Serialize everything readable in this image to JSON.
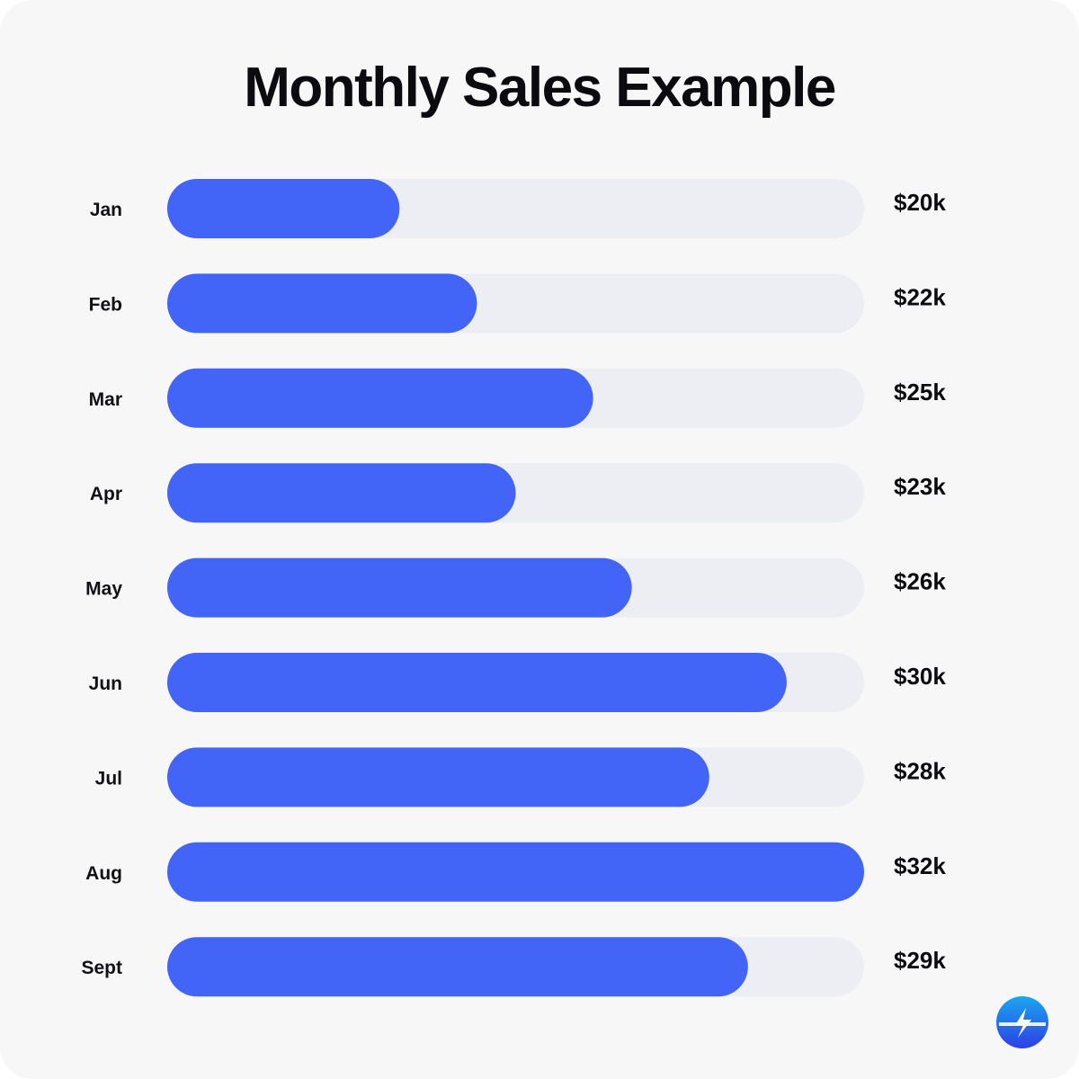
{
  "title": "Monthly Sales Example",
  "chart_data": {
    "type": "bar",
    "orientation": "horizontal",
    "title": "Monthly Sales Example",
    "categories": [
      "Jan",
      "Feb",
      "Mar",
      "Apr",
      "May",
      "Jun",
      "Jul",
      "Aug",
      "Sept"
    ],
    "values": [
      20,
      22,
      25,
      23,
      26,
      30,
      28,
      32,
      29
    ],
    "value_labels": [
      "$20k",
      "$22k",
      "$25k",
      "$23k",
      "$26k",
      "$30k",
      "$28k",
      "$32k",
      "$29k"
    ],
    "unit": "$k",
    "xlim": [
      14,
      32
    ],
    "grid": false,
    "legend": "none"
  },
  "colors": {
    "bar": "#4264f7",
    "track": "#eceef4",
    "background": "#f7f7f8",
    "text": "#0b0b0f"
  },
  "logo": {
    "icon": "lightning-bolt-circle-icon"
  }
}
